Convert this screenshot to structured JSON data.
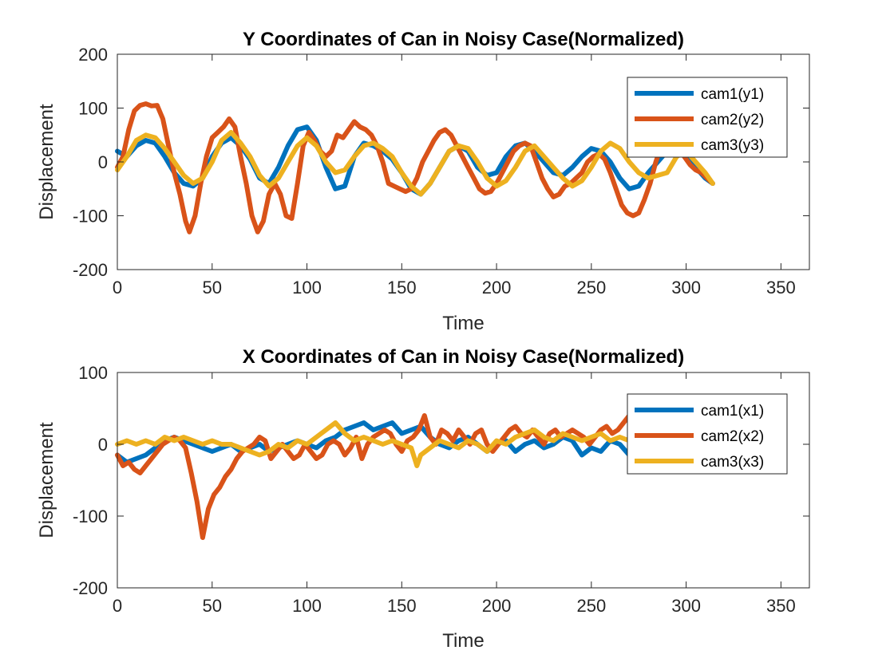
{
  "chart_data": [
    {
      "type": "line",
      "title": "Y Coordinates of Can in Noisy Case(Normalized)",
      "xlabel": "Time",
      "ylabel": "Displacement",
      "xlim": [
        0,
        365
      ],
      "ylim": [
        -200,
        200
      ],
      "xticks": [
        0,
        50,
        100,
        150,
        200,
        250,
        300,
        350
      ],
      "yticks": [
        -200,
        -100,
        0,
        100,
        200
      ],
      "grid": false,
      "legend_position": "top-right",
      "series": [
        {
          "name": "cam1(y1)",
          "color": "#0072BD",
          "x": [
            0,
            5,
            10,
            15,
            20,
            25,
            30,
            35,
            40,
            45,
            50,
            55,
            60,
            65,
            70,
            75,
            80,
            85,
            90,
            95,
            100,
            105,
            110,
            115,
            120,
            125,
            130,
            135,
            140,
            145,
            150,
            155,
            160,
            165,
            170,
            175,
            180,
            185,
            190,
            195,
            200,
            205,
            210,
            215,
            220,
            225,
            230,
            235,
            240,
            245,
            250,
            255,
            260,
            265,
            270,
            275,
            280,
            285,
            290,
            295,
            300,
            305,
            310,
            314
          ],
          "values": [
            20,
            10,
            30,
            40,
            35,
            10,
            -20,
            -40,
            -45,
            -30,
            10,
            35,
            45,
            30,
            5,
            -30,
            -40,
            -10,
            30,
            60,
            65,
            40,
            -10,
            -50,
            -45,
            10,
            35,
            30,
            20,
            5,
            -20,
            -50,
            -60,
            -40,
            -10,
            20,
            30,
            20,
            -10,
            -25,
            -20,
            10,
            30,
            35,
            20,
            0,
            -20,
            -25,
            -10,
            10,
            25,
            20,
            0,
            -30,
            -50,
            -45,
            -20,
            0,
            20,
            25,
            10,
            -10,
            -30,
            -40
          ]
        },
        {
          "name": "cam2(y2)",
          "color": "#D95319",
          "x": [
            0,
            3,
            6,
            9,
            12,
            15,
            18,
            21,
            24,
            27,
            30,
            33,
            36,
            38,
            41,
            44,
            47,
            50,
            53,
            56,
            59,
            62,
            65,
            68,
            71,
            74,
            77,
            80,
            83,
            86,
            89,
            92,
            95,
            98,
            101,
            104,
            107,
            110,
            113,
            116,
            119,
            122,
            125,
            128,
            131,
            134,
            137,
            140,
            143,
            146,
            149,
            152,
            155,
            158,
            161,
            164,
            167,
            170,
            173,
            176,
            179,
            182,
            185,
            188,
            191,
            194,
            197,
            200,
            203,
            206,
            209,
            212,
            215,
            218,
            221,
            224,
            227,
            230,
            233,
            236,
            239,
            242,
            245,
            248,
            251,
            254,
            257,
            260,
            263,
            266,
            269,
            272,
            275,
            278,
            281,
            284,
            287,
            290,
            293,
            296,
            299,
            302,
            305,
            308,
            311,
            314
          ],
          "values": [
            -10,
            10,
            60,
            95,
            105,
            108,
            104,
            105,
            80,
            30,
            -20,
            -60,
            -110,
            -130,
            -100,
            -40,
            10,
            45,
            55,
            65,
            80,
            65,
            10,
            -40,
            -100,
            -130,
            -110,
            -60,
            -40,
            -60,
            -100,
            -105,
            -40,
            30,
            55,
            40,
            20,
            10,
            20,
            50,
            45,
            60,
            75,
            65,
            60,
            50,
            30,
            0,
            -40,
            -45,
            -50,
            -55,
            -50,
            -30,
            0,
            20,
            40,
            55,
            60,
            50,
            30,
            10,
            -10,
            -30,
            -50,
            -58,
            -55,
            -40,
            -20,
            0,
            20,
            30,
            35,
            30,
            0,
            -30,
            -50,
            -65,
            -60,
            -45,
            -40,
            -30,
            -20,
            0,
            10,
            15,
            5,
            -20,
            -50,
            -80,
            -95,
            -100,
            -95,
            -70,
            -40,
            0,
            30,
            45,
            40,
            25,
            10,
            -5,
            -15,
            -20,
            -30,
            -40
          ]
        },
        {
          "name": "cam3(y3)",
          "color": "#EDB120",
          "x": [
            0,
            5,
            10,
            15,
            20,
            25,
            30,
            35,
            40,
            45,
            50,
            55,
            60,
            65,
            70,
            75,
            80,
            85,
            90,
            95,
            100,
            105,
            110,
            115,
            120,
            125,
            130,
            135,
            140,
            145,
            150,
            155,
            160,
            165,
            170,
            175,
            180,
            185,
            190,
            195,
            200,
            205,
            210,
            215,
            220,
            225,
            230,
            235,
            240,
            245,
            250,
            255,
            260,
            265,
            270,
            275,
            280,
            285,
            290,
            295,
            300,
            305,
            310,
            314
          ],
          "values": [
            -15,
            10,
            40,
            50,
            45,
            25,
            0,
            -25,
            -40,
            -30,
            0,
            40,
            55,
            35,
            10,
            -25,
            -45,
            -30,
            0,
            30,
            45,
            30,
            0,
            -20,
            -15,
            10,
            30,
            35,
            25,
            10,
            -20,
            -45,
            -60,
            -40,
            -10,
            20,
            30,
            25,
            0,
            -30,
            -45,
            -35,
            -10,
            20,
            30,
            10,
            -10,
            -30,
            -45,
            -35,
            -10,
            20,
            35,
            25,
            0,
            -20,
            -30,
            -25,
            -20,
            10,
            20,
            0,
            -20,
            -40
          ]
        }
      ]
    },
    {
      "type": "line",
      "title": "X Coordinates of Can in Noisy Case(Normalized)",
      "xlabel": "Time",
      "ylabel": "Displacement",
      "xlim": [
        0,
        365
      ],
      "ylim": [
        -200,
        100
      ],
      "xticks": [
        0,
        50,
        100,
        150,
        200,
        250,
        300,
        350
      ],
      "yticks": [
        -200,
        -100,
        0,
        100
      ],
      "grid": false,
      "legend_position": "top-right",
      "series": [
        {
          "name": "cam1(x1)",
          "color": "#0072BD",
          "x": [
            0,
            5,
            10,
            15,
            20,
            25,
            30,
            35,
            40,
            45,
            50,
            55,
            60,
            65,
            70,
            75,
            80,
            85,
            90,
            95,
            100,
            105,
            110,
            115,
            120,
            125,
            130,
            135,
            140,
            145,
            150,
            155,
            160,
            165,
            170,
            175,
            180,
            185,
            190,
            195,
            200,
            205,
            210,
            215,
            220,
            225,
            230,
            235,
            240,
            245,
            250,
            255,
            260,
            265,
            270,
            275
          ],
          "values": [
            -15,
            -25,
            -20,
            -15,
            -5,
            5,
            10,
            5,
            0,
            -5,
            -10,
            -5,
            0,
            -10,
            -5,
            0,
            -10,
            -5,
            0,
            5,
            0,
            -5,
            5,
            10,
            20,
            25,
            30,
            20,
            25,
            30,
            15,
            20,
            25,
            10,
            0,
            -5,
            5,
            10,
            0,
            -10,
            0,
            5,
            -10,
            0,
            5,
            -5,
            0,
            10,
            5,
            -15,
            -5,
            -10,
            5,
            0,
            -15,
            -10
          ]
        },
        {
          "name": "cam2(x2)",
          "color": "#D95319",
          "x": [
            0,
            3,
            6,
            9,
            12,
            15,
            18,
            21,
            24,
            27,
            30,
            33,
            36,
            39,
            42,
            45,
            48,
            51,
            54,
            57,
            60,
            63,
            66,
            69,
            72,
            75,
            78,
            81,
            84,
            87,
            90,
            93,
            96,
            99,
            102,
            105,
            108,
            111,
            114,
            117,
            120,
            123,
            126,
            129,
            132,
            135,
            138,
            141,
            144,
            147,
            150,
            153,
            156,
            159,
            162,
            165,
            168,
            171,
            174,
            177,
            180,
            183,
            186,
            189,
            192,
            195,
            198,
            201,
            204,
            207,
            210,
            213,
            216,
            219,
            222,
            225,
            228,
            231,
            234,
            237,
            240,
            243,
            246,
            249,
            252,
            255,
            258,
            261,
            264,
            267,
            270,
            273,
            276
          ],
          "values": [
            -15,
            -30,
            -25,
            -35,
            -40,
            -30,
            -20,
            -10,
            0,
            5,
            10,
            5,
            -5,
            -40,
            -80,
            -130,
            -90,
            -70,
            -60,
            -45,
            -35,
            -20,
            -10,
            -5,
            0,
            10,
            5,
            -20,
            -10,
            0,
            -10,
            -20,
            -15,
            0,
            -10,
            -20,
            -15,
            0,
            5,
            0,
            -15,
            -5,
            10,
            -20,
            0,
            10,
            15,
            20,
            15,
            0,
            -10,
            5,
            10,
            20,
            40,
            10,
            0,
            20,
            15,
            5,
            20,
            10,
            0,
            15,
            20,
            0,
            -10,
            0,
            10,
            20,
            25,
            15,
            10,
            20,
            10,
            0,
            15,
            20,
            10,
            15,
            20,
            15,
            10,
            0,
            10,
            20,
            25,
            15,
            20,
            30,
            40,
            35,
            30
          ]
        },
        {
          "name": "cam3(x3)",
          "color": "#EDB120",
          "x": [
            0,
            5,
            10,
            15,
            20,
            25,
            30,
            35,
            40,
            45,
            50,
            55,
            60,
            65,
            70,
            75,
            80,
            85,
            90,
            95,
            100,
            105,
            110,
            115,
            120,
            125,
            130,
            135,
            140,
            145,
            150,
            155,
            158,
            160,
            165,
            170,
            175,
            180,
            185,
            190,
            195,
            200,
            205,
            210,
            215,
            220,
            225,
            230,
            235,
            240,
            245,
            250,
            255,
            260,
            265,
            270,
            275
          ],
          "values": [
            0,
            5,
            0,
            5,
            0,
            10,
            5,
            10,
            5,
            0,
            5,
            0,
            0,
            -5,
            -10,
            -15,
            -10,
            0,
            -5,
            5,
            0,
            10,
            20,
            30,
            15,
            5,
            10,
            5,
            0,
            5,
            0,
            -5,
            -30,
            -15,
            -5,
            5,
            0,
            -5,
            5,
            0,
            -10,
            5,
            0,
            10,
            15,
            20,
            10,
            5,
            15,
            10,
            5,
            10,
            15,
            5,
            10,
            5,
            5
          ]
        }
      ]
    }
  ]
}
